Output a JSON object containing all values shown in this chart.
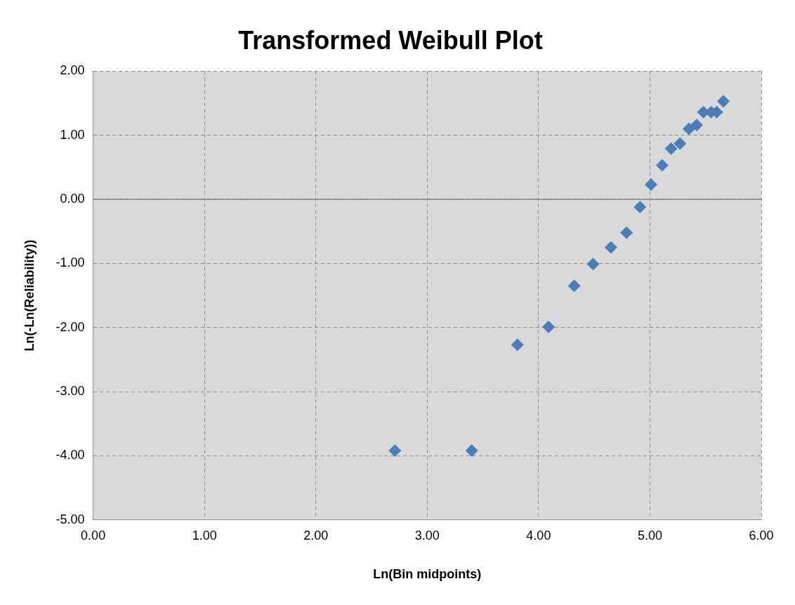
{
  "chart_data": {
    "type": "scatter",
    "title": "Transformed Weibull Plot",
    "xlabel": "Ln(Bin midpoints)",
    "ylabel": "Ln(-Ln(Reliability))",
    "x": [
      2.71,
      3.4,
      3.81,
      4.09,
      4.32,
      4.49,
      4.65,
      4.79,
      4.91,
      5.01,
      5.11,
      5.19,
      5.27,
      5.35,
      5.42,
      5.48,
      5.55,
      5.6,
      5.66
    ],
    "series": [
      {
        "color": "#4a7ebb",
        "values": [
          -3.92,
          -3.92,
          -2.27,
          -1.99,
          -1.35,
          -1.01,
          -0.75,
          -0.52,
          -0.12,
          0.23,
          0.53,
          0.79,
          0.87,
          1.1,
          1.16,
          1.36,
          1.36,
          1.36,
          1.53
        ]
      }
    ],
    "xlim": [
      0,
      6
    ],
    "xticks": [
      {
        "value": 0,
        "label": "0.00"
      },
      {
        "value": 1,
        "label": "1.00"
      },
      {
        "value": 2,
        "label": "2.00"
      },
      {
        "value": 3,
        "label": "3.00"
      },
      {
        "value": 4,
        "label": "4.00"
      },
      {
        "value": 5,
        "label": "5.00"
      },
      {
        "value": 6,
        "label": "6.00"
      }
    ],
    "ylim": [
      -5,
      2
    ],
    "yticks": [
      {
        "value": -5,
        "label": "-5.00"
      },
      {
        "value": -4,
        "label": "-4.00"
      },
      {
        "value": -3,
        "label": "-3.00"
      },
      {
        "value": -2,
        "label": "-2.00"
      },
      {
        "value": -1,
        "label": "-1.00"
      },
      {
        "value": 0,
        "label": "0.00"
      },
      {
        "value": 1,
        "label": "1.00"
      },
      {
        "value": 2,
        "label": "2.00"
      }
    ],
    "ref_lines": [
      {
        "axis": "y",
        "value": 0,
        "color": "#868686"
      }
    ],
    "grid": true,
    "legend": false,
    "marker": "diamond"
  }
}
